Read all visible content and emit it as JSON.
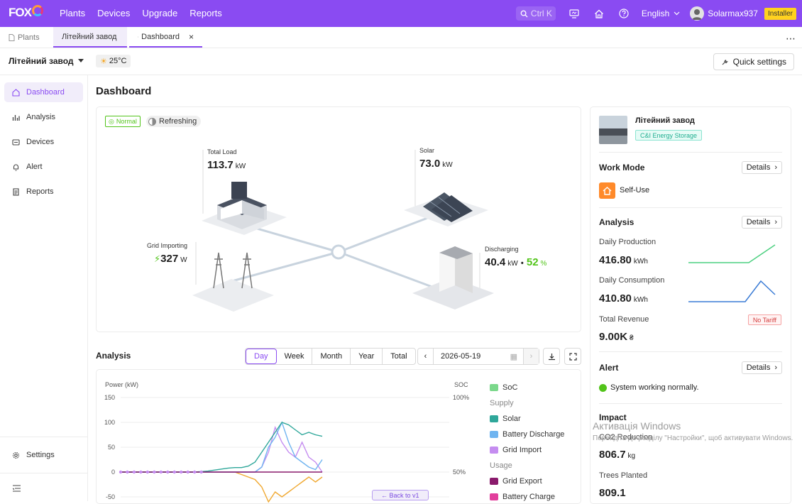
{
  "topbar": {
    "logo_text": "FOX",
    "logo_sub": "ESS",
    "nav": [
      "Plants",
      "Devices",
      "Upgrade",
      "Reports"
    ],
    "search_hint": "Ctrl K",
    "language": "English",
    "user_name": "Solarmax937",
    "role_badge": "Installer",
    "accent": "#8a4bf2"
  },
  "tabs": [
    {
      "label": "Plants"
    },
    {
      "label": "Літейний завод"
    },
    {
      "label": "Dashboard"
    }
  ],
  "plant_bar": {
    "plant_name": "Літейний завод",
    "temperature": "25°C",
    "quick_settings": "Quick settings"
  },
  "sidebar": {
    "items": [
      "Dashboard",
      "Analysis",
      "Devices",
      "Alert",
      "Reports"
    ],
    "settings": "Settings"
  },
  "dashboard": {
    "title": "Dashboard",
    "status_badge": "Normal",
    "refresh_badge": "Refreshing",
    "total_load": {
      "label": "Total Load",
      "value": "113.7",
      "unit": "kW"
    },
    "solar": {
      "label": "Solar",
      "value": "73.0",
      "unit": "kW"
    },
    "grid": {
      "label": "Grid Importing",
      "value": "327",
      "unit": "W"
    },
    "battery": {
      "label": "Discharging",
      "value": "40.4",
      "unit": "kW",
      "separator": "•",
      "soc": "52",
      "soc_unit": "%"
    }
  },
  "plant_card": {
    "name": "Літейний завод",
    "type_badge": "C&I Energy Storage",
    "work_mode_title": "Work Mode",
    "work_mode_value": "Self-Use",
    "details": "Details",
    "analysis_title": "Analysis",
    "daily_production_label": "Daily Production",
    "daily_production_value": "416.80",
    "daily_production_unit": "kWh",
    "daily_consumption_label": "Daily Consumption",
    "daily_consumption_value": "410.80",
    "daily_consumption_unit": "kWh",
    "total_revenue_label": "Total Revenue",
    "total_revenue_value": "9.00K",
    "total_revenue_unit": "₴",
    "no_tariff": "No Tariff",
    "alert_title": "Alert",
    "alert_message": "System working normally.",
    "impact_title": "Impact",
    "co2_label": "CO2 Reduction",
    "co2_value": "806.7",
    "co2_unit": "kg",
    "trees_label": "Trees Planted",
    "trees_value": "809.1"
  },
  "analysis": {
    "title": "Analysis",
    "ranges": [
      "Day",
      "Week",
      "Month",
      "Year",
      "Total"
    ],
    "selected_range": "Day",
    "date": "2026-05-19",
    "back_to_v1": "← Back to v1"
  },
  "chart_data": {
    "type": "line",
    "ylabel_left": "Power (kW)",
    "ylabel_right": "SOC",
    "y_ticks_left": [
      "150",
      "100",
      "50",
      "0",
      "-50"
    ],
    "y_ticks_right": [
      "100%",
      "50%"
    ],
    "legend_sections": [
      "Supply",
      "Usage"
    ],
    "series": [
      {
        "name": "SoC",
        "color": "#7bd88b",
        "group": ""
      },
      {
        "name": "Solar",
        "color": "#2fa79a",
        "group": "Supply"
      },
      {
        "name": "Battery Discharge",
        "color": "#6fb4f0",
        "group": "Supply"
      },
      {
        "name": "Grid Import",
        "color": "#c58df0",
        "group": "Supply"
      },
      {
        "name": "Grid Export",
        "color": "#8a1a6c",
        "group": "Usage"
      },
      {
        "name": "Battery Charge",
        "color": "#e23e9c",
        "group": "Usage"
      }
    ],
    "solar_values": [
      0,
      0,
      0,
      0,
      0,
      0,
      0,
      0,
      0,
      0,
      0,
      0,
      1,
      2,
      4,
      6,
      8,
      9,
      9,
      12,
      20,
      40,
      60,
      80,
      100,
      95,
      85,
      75,
      80,
      75,
      72
    ],
    "battery_discharge_values": [
      0,
      0,
      0,
      0,
      0,
      0,
      0,
      0,
      0,
      0,
      0,
      0,
      0,
      0,
      0,
      0,
      0,
      0,
      0,
      0,
      0,
      10,
      50,
      70,
      100,
      60,
      30,
      20,
      10,
      5,
      25
    ],
    "grid_import_values": [
      0,
      0,
      0,
      0,
      0,
      0,
      0,
      0,
      0,
      0,
      0,
      0,
      0,
      0,
      0,
      0,
      0,
      0,
      0,
      0,
      0,
      10,
      40,
      90,
      60,
      40,
      30,
      60,
      30,
      20,
      0
    ],
    "load_neg_values": [
      0,
      0,
      0,
      0,
      0,
      0,
      0,
      0,
      0,
      0,
      0,
      0,
      0,
      0,
      0,
      0,
      0,
      0,
      -5,
      -10,
      -15,
      -30,
      -60,
      -40,
      -50,
      -40,
      -30,
      -20,
      -10,
      -20,
      -10
    ],
    "ylim": [
      -50,
      150
    ]
  },
  "windows_watermark": {
    "line1": "Активація Windows",
    "line2": "Перейдіть до розділу \"Настройки\", щоб активувати Windows."
  }
}
